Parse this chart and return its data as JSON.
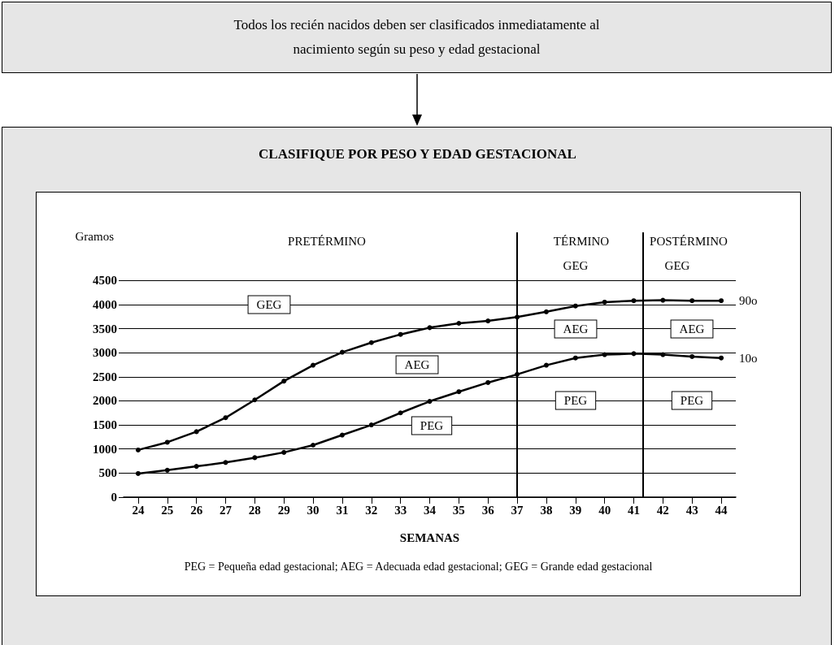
{
  "chart_data": {
    "type": "line",
    "title": "CLASIFIQUE POR PESO Y EDAD GESTACIONAL",
    "xlabel": "SEMANAS",
    "ylabel": "Gramos",
    "x": [
      24,
      25,
      26,
      27,
      28,
      29,
      30,
      31,
      32,
      33,
      34,
      35,
      36,
      37,
      38,
      39,
      40,
      41,
      42,
      43,
      44
    ],
    "series": [
      {
        "name": "90o",
        "color": "#000000",
        "values": [
          980,
          1140,
          1360,
          1650,
          2020,
          2410,
          2740,
          3010,
          3210,
          3380,
          3520,
          3610,
          3660,
          3740,
          3850,
          3970,
          4050,
          4080,
          4090,
          4080,
          4080
        ]
      },
      {
        "name": "10o",
        "color": "#000000",
        "values": [
          490,
          560,
          640,
          720,
          820,
          930,
          1080,
          1290,
          1500,
          1750,
          1990,
          2190,
          2380,
          2550,
          2740,
          2890,
          2960,
          2980,
          2960,
          2920,
          2890
        ]
      }
    ],
    "xlim": [
      23.5,
      44.5
    ],
    "xticks": [
      24,
      25,
      26,
      27,
      28,
      29,
      30,
      31,
      32,
      33,
      34,
      35,
      36,
      37,
      38,
      39,
      40,
      41,
      42,
      43,
      44
    ],
    "ylim": [
      0,
      5500
    ],
    "yticks": [
      0,
      500,
      1000,
      1500,
      2000,
      2500,
      3000,
      3500,
      4000,
      4500
    ],
    "ref_lines": [
      {
        "axis": "x",
        "value": 37,
        "label": null
      },
      {
        "axis": "x",
        "value": 41.3,
        "label": null
      }
    ],
    "annotations": [
      "Todos los recién nacidos deben ser clasificados inmediatamente al nacimiento según su peso y edad gestacional",
      "PRETÉRMINO",
      "TÉRMINO",
      "POSTÉRMINO",
      "GEG",
      "GEG",
      "GEG",
      "AEG",
      "PEG",
      "AEG",
      "AEG",
      "PEG",
      "PEG",
      "PEG = Pequeña edad gestacional; AEG = Adecuada edad gestacional; GEG = Grande edad gestacional"
    ],
    "grid": "y",
    "marker": "circle",
    "line_style": "solid",
    "legend": false
  }
}
